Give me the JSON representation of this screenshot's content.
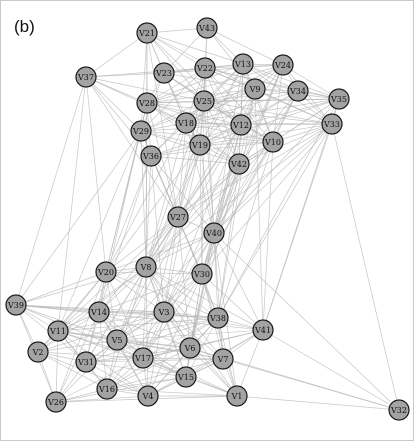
{
  "panel_label": "(b)",
  "colors": {
    "node_fill": "#a3a3a3",
    "node_stroke": "#1a1a1a",
    "edge": "#b4b4b4",
    "frame": "#c8c8c8"
  },
  "nodes": [
    "V43",
    "V21",
    "V37",
    "V23",
    "V22",
    "V13",
    "V24",
    "V9",
    "V34",
    "V35",
    "V28",
    "V25",
    "V18",
    "V12",
    "V29",
    "V10",
    "V33",
    "V19",
    "V36",
    "V42",
    "V27",
    "V40",
    "V20",
    "V8",
    "V30",
    "V39",
    "V14",
    "V3",
    "V38",
    "V41",
    "V11",
    "V5",
    "V2",
    "V17",
    "V6",
    "V7",
    "V31",
    "V15",
    "V16",
    "V4",
    "V1",
    "V26",
    "V32"
  ],
  "edges": [
    [
      "V21",
      "V37"
    ],
    [
      "V21",
      "V23"
    ],
    [
      "V21",
      "V22"
    ],
    [
      "V21",
      "V43"
    ],
    [
      "V21",
      "V28"
    ],
    [
      "V21",
      "V25"
    ],
    [
      "V21",
      "V13"
    ],
    [
      "V21",
      "V9"
    ],
    [
      "V21",
      "V29"
    ],
    [
      "V21",
      "V18"
    ],
    [
      "V21",
      "V12"
    ],
    [
      "V43",
      "V22"
    ],
    [
      "V43",
      "V13"
    ],
    [
      "V43",
      "V24"
    ],
    [
      "V43",
      "V23"
    ],
    [
      "V43",
      "V25"
    ],
    [
      "V43",
      "V9"
    ],
    [
      "V37",
      "V23"
    ],
    [
      "V37",
      "V28"
    ],
    [
      "V37",
      "V29"
    ],
    [
      "V37",
      "V36"
    ],
    [
      "V37",
      "V18"
    ],
    [
      "V37",
      "V25"
    ],
    [
      "V37",
      "V22"
    ],
    [
      "V23",
      "V22"
    ],
    [
      "V23",
      "V13"
    ],
    [
      "V23",
      "V28"
    ],
    [
      "V23",
      "V25"
    ],
    [
      "V23",
      "V18"
    ],
    [
      "V23",
      "V12"
    ],
    [
      "V23",
      "V9"
    ],
    [
      "V23",
      "V29"
    ],
    [
      "V23",
      "V19"
    ],
    [
      "V23",
      "V10"
    ],
    [
      "V23",
      "V24"
    ],
    [
      "V22",
      "V13"
    ],
    [
      "V22",
      "V24"
    ],
    [
      "V22",
      "V28"
    ],
    [
      "V22",
      "V25"
    ],
    [
      "V22",
      "V9"
    ],
    [
      "V22",
      "V12"
    ],
    [
      "V22",
      "V18"
    ],
    [
      "V22",
      "V34"
    ],
    [
      "V22",
      "V35"
    ],
    [
      "V22",
      "V19"
    ],
    [
      "V22",
      "V42"
    ],
    [
      "V22",
      "V29"
    ],
    [
      "V22",
      "V10"
    ],
    [
      "V22",
      "V33"
    ],
    [
      "V13",
      "V24"
    ],
    [
      "V13",
      "V9"
    ],
    [
      "V13",
      "V34"
    ],
    [
      "V13",
      "V25"
    ],
    [
      "V13",
      "V12"
    ],
    [
      "V13",
      "V35"
    ],
    [
      "V13",
      "V28"
    ],
    [
      "V13",
      "V18"
    ],
    [
      "V13",
      "V10"
    ],
    [
      "V13",
      "V33"
    ],
    [
      "V13",
      "V42"
    ],
    [
      "V13",
      "V19"
    ],
    [
      "V24",
      "V9"
    ],
    [
      "V24",
      "V34"
    ],
    [
      "V24",
      "V35"
    ],
    [
      "V24",
      "V12"
    ],
    [
      "V24",
      "V25"
    ],
    [
      "V24",
      "V33"
    ],
    [
      "V24",
      "V10"
    ],
    [
      "V24",
      "V42"
    ],
    [
      "V24",
      "V18"
    ],
    [
      "V24",
      "V28"
    ],
    [
      "V9",
      "V34"
    ],
    [
      "V9",
      "V35"
    ],
    [
      "V9",
      "V25"
    ],
    [
      "V9",
      "V12"
    ],
    [
      "V9",
      "V10"
    ],
    [
      "V9",
      "V33"
    ],
    [
      "V9",
      "V18"
    ],
    [
      "V9",
      "V19"
    ],
    [
      "V9",
      "V42"
    ],
    [
      "V9",
      "V28"
    ],
    [
      "V9",
      "V29"
    ],
    [
      "V34",
      "V35"
    ],
    [
      "V34",
      "V33"
    ],
    [
      "V34",
      "V12"
    ],
    [
      "V34",
      "V10"
    ],
    [
      "V34",
      "V25"
    ],
    [
      "V34",
      "V42"
    ],
    [
      "V34",
      "V19"
    ],
    [
      "V34",
      "V18"
    ],
    [
      "V35",
      "V33"
    ],
    [
      "V35",
      "V12"
    ],
    [
      "V35",
      "V10"
    ],
    [
      "V35",
      "V25"
    ],
    [
      "V35",
      "V42"
    ],
    [
      "V35",
      "V28"
    ],
    [
      "V35",
      "V19"
    ],
    [
      "V35",
      "V18"
    ],
    [
      "V28",
      "V25"
    ],
    [
      "V28",
      "V18"
    ],
    [
      "V28",
      "V29"
    ],
    [
      "V28",
      "V12"
    ],
    [
      "V28",
      "V19"
    ],
    [
      "V28",
      "V36"
    ],
    [
      "V28",
      "V10"
    ],
    [
      "V28",
      "V42"
    ],
    [
      "V28",
      "V33"
    ],
    [
      "V25",
      "V18"
    ],
    [
      "V25",
      "V12"
    ],
    [
      "V25",
      "V29"
    ],
    [
      "V25",
      "V19"
    ],
    [
      "V25",
      "V10"
    ],
    [
      "V25",
      "V42"
    ],
    [
      "V25",
      "V33"
    ],
    [
      "V25",
      "V36"
    ],
    [
      "V18",
      "V29"
    ],
    [
      "V18",
      "V12"
    ],
    [
      "V18",
      "V19"
    ],
    [
      "V18",
      "V36"
    ],
    [
      "V18",
      "V42"
    ],
    [
      "V18",
      "V10"
    ],
    [
      "V18",
      "V33"
    ],
    [
      "V12",
      "V19"
    ],
    [
      "V12",
      "V10"
    ],
    [
      "V12",
      "V42"
    ],
    [
      "V12",
      "V33"
    ],
    [
      "V12",
      "V29"
    ],
    [
      "V12",
      "V36"
    ],
    [
      "V29",
      "V36"
    ],
    [
      "V29",
      "V19"
    ],
    [
      "V29",
      "V42"
    ],
    [
      "V29",
      "V10"
    ],
    [
      "V19",
      "V36"
    ],
    [
      "V19",
      "V42"
    ],
    [
      "V19",
      "V10"
    ],
    [
      "V19",
      "V33"
    ],
    [
      "V10",
      "V42"
    ],
    [
      "V10",
      "V33"
    ],
    [
      "V42",
      "V33"
    ],
    [
      "V36",
      "V42"
    ],
    [
      "V36",
      "V10"
    ],
    [
      "V36",
      "V27"
    ],
    [
      "V36",
      "V8"
    ],
    [
      "V36",
      "V20"
    ],
    [
      "V36",
      "V40"
    ],
    [
      "V36",
      "V30"
    ],
    [
      "V36",
      "V14"
    ],
    [
      "V36",
      "V3"
    ],
    [
      "V42",
      "V40"
    ],
    [
      "V42",
      "V27"
    ],
    [
      "V42",
      "V8"
    ],
    [
      "V42",
      "V30"
    ],
    [
      "V42",
      "V38"
    ],
    [
      "V42",
      "V3"
    ],
    [
      "V42",
      "V6"
    ],
    [
      "V10",
      "V40"
    ],
    [
      "V10",
      "V27"
    ],
    [
      "V10",
      "V8"
    ],
    [
      "V10",
      "V30"
    ],
    [
      "V10",
      "V38"
    ],
    [
      "V10",
      "V41"
    ],
    [
      "V33",
      "V40"
    ],
    [
      "V33",
      "V27"
    ],
    [
      "V33",
      "V30"
    ],
    [
      "V33",
      "V38"
    ],
    [
      "V33",
      "V41"
    ],
    [
      "V33",
      "V8"
    ],
    [
      "V19",
      "V27"
    ],
    [
      "V19",
      "V40"
    ],
    [
      "V19",
      "V8"
    ],
    [
      "V19",
      "V20"
    ],
    [
      "V19",
      "V30"
    ],
    [
      "V19",
      "V3"
    ],
    [
      "V29",
      "V27"
    ],
    [
      "V29",
      "V8"
    ],
    [
      "V29",
      "V20"
    ],
    [
      "V29",
      "V11"
    ],
    [
      "V29",
      "V39"
    ],
    [
      "V12",
      "V27"
    ],
    [
      "V12",
      "V40"
    ],
    [
      "V12",
      "V8"
    ],
    [
      "V12",
      "V30"
    ],
    [
      "V12",
      "V3"
    ],
    [
      "V12",
      "V5"
    ],
    [
      "V12",
      "V6"
    ],
    [
      "V18",
      "V27"
    ],
    [
      "V18",
      "V8"
    ],
    [
      "V18",
      "V40"
    ],
    [
      "V18",
      "V20"
    ],
    [
      "V25",
      "V27"
    ],
    [
      "V25",
      "V40"
    ],
    [
      "V25",
      "V8"
    ],
    [
      "V25",
      "V30"
    ],
    [
      "V28",
      "V27"
    ],
    [
      "V28",
      "V8"
    ],
    [
      "V28",
      "V20"
    ],
    [
      "V28",
      "V14"
    ],
    [
      "V9",
      "V40"
    ],
    [
      "V9",
      "V27"
    ],
    [
      "V9",
      "V38"
    ],
    [
      "V9",
      "V41"
    ],
    [
      "V35",
      "V41"
    ],
    [
      "V35",
      "V40"
    ],
    [
      "V35",
      "V38"
    ],
    [
      "V34",
      "V40"
    ],
    [
      "V34",
      "V30"
    ],
    [
      "V37",
      "V39"
    ],
    [
      "V37",
      "V20"
    ],
    [
      "V37",
      "V11"
    ],
    [
      "V37",
      "V27"
    ],
    [
      "V21",
      "V27"
    ],
    [
      "V21",
      "V8"
    ],
    [
      "V22",
      "V27"
    ],
    [
      "V22",
      "V40"
    ],
    [
      "V13",
      "V40"
    ],
    [
      "V24",
      "V40"
    ],
    [
      "V13",
      "V8"
    ],
    [
      "V24",
      "V30"
    ],
    [
      "V27",
      "V40"
    ],
    [
      "V27",
      "V8"
    ],
    [
      "V27",
      "V20"
    ],
    [
      "V27",
      "V30"
    ],
    [
      "V27",
      "V14"
    ],
    [
      "V27",
      "V3"
    ],
    [
      "V27",
      "V5"
    ],
    [
      "V27",
      "V17"
    ],
    [
      "V27",
      "V38"
    ],
    [
      "V27",
      "V6"
    ],
    [
      "V27",
      "V11"
    ],
    [
      "V27",
      "V31"
    ],
    [
      "V40",
      "V8"
    ],
    [
      "V40",
      "V30"
    ],
    [
      "V40",
      "V20"
    ],
    [
      "V40",
      "V38"
    ],
    [
      "V40",
      "V3"
    ],
    [
      "V40",
      "V41"
    ],
    [
      "V40",
      "V6"
    ],
    [
      "V40",
      "V7"
    ],
    [
      "V40",
      "V15"
    ],
    [
      "V40",
      "V1"
    ],
    [
      "V40",
      "V5"
    ],
    [
      "V40",
      "V17"
    ],
    [
      "V20",
      "V8"
    ],
    [
      "V20",
      "V14"
    ],
    [
      "V20",
      "V11"
    ],
    [
      "V20",
      "V39"
    ],
    [
      "V20",
      "V3"
    ],
    [
      "V20",
      "V5"
    ],
    [
      "V20",
      "V31"
    ],
    [
      "V20",
      "V2"
    ],
    [
      "V20",
      "V17"
    ],
    [
      "V20",
      "V30"
    ],
    [
      "V20",
      "V26"
    ],
    [
      "V20",
      "V38"
    ],
    [
      "V8",
      "V30"
    ],
    [
      "V8",
      "V14"
    ],
    [
      "V8",
      "V3"
    ],
    [
      "V8",
      "V5"
    ],
    [
      "V8",
      "V17"
    ],
    [
      "V8",
      "V38"
    ],
    [
      "V8",
      "V6"
    ],
    [
      "V8",
      "V11"
    ],
    [
      "V8",
      "V31"
    ],
    [
      "V8",
      "V15"
    ],
    [
      "V8",
      "V7"
    ],
    [
      "V8",
      "V16"
    ],
    [
      "V8",
      "V4"
    ],
    [
      "V8",
      "V2"
    ],
    [
      "V8",
      "V39"
    ],
    [
      "V8",
      "V41"
    ],
    [
      "V8",
      "V1"
    ],
    [
      "V30",
      "V3"
    ],
    [
      "V30",
      "V38"
    ],
    [
      "V30",
      "V41"
    ],
    [
      "V30",
      "V6"
    ],
    [
      "V30",
      "V7"
    ],
    [
      "V30",
      "V5"
    ],
    [
      "V30",
      "V17"
    ],
    [
      "V30",
      "V15"
    ],
    [
      "V30",
      "V14"
    ],
    [
      "V30",
      "V1"
    ],
    [
      "V30",
      "V4"
    ],
    [
      "V39",
      "V14"
    ],
    [
      "V39",
      "V11"
    ],
    [
      "V39",
      "V2"
    ],
    [
      "V39",
      "V5"
    ],
    [
      "V39",
      "V3"
    ],
    [
      "V39",
      "V31"
    ],
    [
      "V39",
      "V26"
    ],
    [
      "V39",
      "V17"
    ],
    [
      "V39",
      "V38"
    ],
    [
      "V39",
      "V41"
    ],
    [
      "V14",
      "V3"
    ],
    [
      "V14",
      "V11"
    ],
    [
      "V14",
      "V5"
    ],
    [
      "V14",
      "V17"
    ],
    [
      "V14",
      "V31"
    ],
    [
      "V14",
      "V2"
    ],
    [
      "V14",
      "V38"
    ],
    [
      "V14",
      "V16"
    ],
    [
      "V14",
      "V6"
    ],
    [
      "V14",
      "V4"
    ],
    [
      "V14",
      "V26"
    ],
    [
      "V14",
      "V15"
    ],
    [
      "V3",
      "V38"
    ],
    [
      "V3",
      "V5"
    ],
    [
      "V3",
      "V17"
    ],
    [
      "V3",
      "V6"
    ],
    [
      "V3",
      "V7"
    ],
    [
      "V3",
      "V11"
    ],
    [
      "V3",
      "V31"
    ],
    [
      "V3",
      "V15"
    ],
    [
      "V3",
      "V16"
    ],
    [
      "V3",
      "V4"
    ],
    [
      "V3",
      "V41"
    ],
    [
      "V3",
      "V1"
    ],
    [
      "V3",
      "V2"
    ],
    [
      "V38",
      "V41"
    ],
    [
      "V38",
      "V6"
    ],
    [
      "V38",
      "V7"
    ],
    [
      "V38",
      "V5"
    ],
    [
      "V38",
      "V17"
    ],
    [
      "V38",
      "V15"
    ],
    [
      "V38",
      "V1"
    ],
    [
      "V38",
      "V4"
    ],
    [
      "V38",
      "V31"
    ],
    [
      "V38",
      "V11"
    ],
    [
      "V38",
      "V16"
    ],
    [
      "V41",
      "V6"
    ],
    [
      "V41",
      "V7"
    ],
    [
      "V41",
      "V1"
    ],
    [
      "V41",
      "V15"
    ],
    [
      "V41",
      "V32"
    ],
    [
      "V41",
      "V17"
    ],
    [
      "V41",
      "V4"
    ],
    [
      "V41",
      "V5"
    ],
    [
      "V11",
      "V5"
    ],
    [
      "V11",
      "V2"
    ],
    [
      "V11",
      "V31"
    ],
    [
      "V11",
      "V17"
    ],
    [
      "V11",
      "V16"
    ],
    [
      "V11",
      "V26"
    ],
    [
      "V11",
      "V4"
    ],
    [
      "V11",
      "V6"
    ],
    [
      "V11",
      "V15"
    ],
    [
      "V11",
      "V7"
    ],
    [
      "V5",
      "V17"
    ],
    [
      "V5",
      "V31"
    ],
    [
      "V5",
      "V6"
    ],
    [
      "V5",
      "V16"
    ],
    [
      "V5",
      "V4"
    ],
    [
      "V5",
      "V15"
    ],
    [
      "V5",
      "V2"
    ],
    [
      "V5",
      "V7"
    ],
    [
      "V5",
      "V26"
    ],
    [
      "V5",
      "V1"
    ],
    [
      "V2",
      "V31"
    ],
    [
      "V2",
      "V26"
    ],
    [
      "V2",
      "V16"
    ],
    [
      "V2",
      "V17"
    ],
    [
      "V2",
      "V4"
    ],
    [
      "V17",
      "V6"
    ],
    [
      "V17",
      "V31"
    ],
    [
      "V17",
      "V16"
    ],
    [
      "V17",
      "V4"
    ],
    [
      "V17",
      "V15"
    ],
    [
      "V17",
      "V7"
    ],
    [
      "V17",
      "V1"
    ],
    [
      "V17",
      "V26"
    ],
    [
      "V6",
      "V7"
    ],
    [
      "V6",
      "V15"
    ],
    [
      "V6",
      "V4"
    ],
    [
      "V6",
      "V1"
    ],
    [
      "V6",
      "V16"
    ],
    [
      "V6",
      "V31"
    ],
    [
      "V6",
      "V32"
    ],
    [
      "V7",
      "V15"
    ],
    [
      "V7",
      "V1"
    ],
    [
      "V7",
      "V4"
    ],
    [
      "V7",
      "V32"
    ],
    [
      "V7",
      "V16"
    ],
    [
      "V31",
      "V16"
    ],
    [
      "V31",
      "V26"
    ],
    [
      "V31",
      "V4"
    ],
    [
      "V31",
      "V15"
    ],
    [
      "V31",
      "V7"
    ],
    [
      "V15",
      "V4"
    ],
    [
      "V15",
      "V16"
    ],
    [
      "V15",
      "V1"
    ],
    [
      "V15",
      "V26"
    ],
    [
      "V16",
      "V4"
    ],
    [
      "V16",
      "V26"
    ],
    [
      "V16",
      "V1"
    ],
    [
      "V4",
      "V26"
    ],
    [
      "V4",
      "V1"
    ],
    [
      "V1",
      "V32"
    ],
    [
      "V26",
      "V1"
    ],
    [
      "V33",
      "V32"
    ],
    [
      "V40",
      "V32"
    ]
  ]
}
